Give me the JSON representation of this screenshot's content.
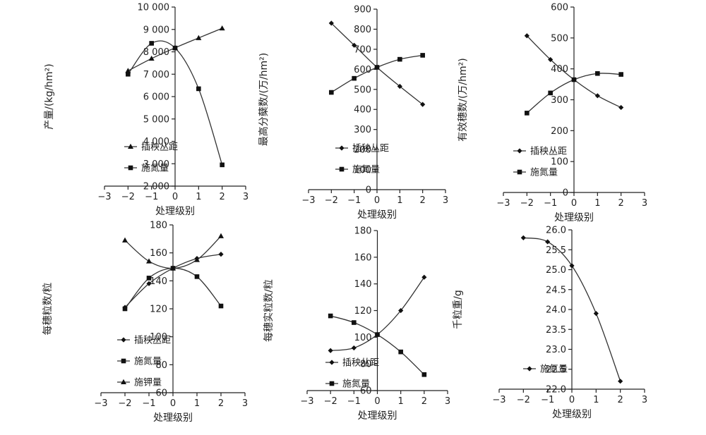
{
  "chart_data": [
    {
      "type": "line",
      "xlabel": "处理级别",
      "ylabel": "产量/(kg/hm²)",
      "xlim": [
        -3,
        3
      ],
      "ylim": [
        2000,
        10000
      ],
      "xticks": [
        -3,
        -2,
        -1,
        0,
        1,
        2,
        3
      ],
      "xtick_labels": [
        "−3",
        "−2",
        "−1",
        "0",
        "1",
        "2",
        "3"
      ],
      "yticks": [
        2000,
        3000,
        4000,
        5000,
        6000,
        7000,
        8000,
        9000,
        10000
      ],
      "ytick_labels": [
        "2 000",
        "3 000",
        "4 000",
        "5 000",
        "6 000",
        "7 000",
        "8 000",
        "9 000",
        "10 000"
      ],
      "legend_position": "lower-left",
      "series": [
        {
          "name": "插秧丛距",
          "marker": "triangle",
          "x": [
            -2,
            -1,
            0,
            1,
            2
          ],
          "y": [
            7150,
            7700,
            8180,
            8620,
            9050
          ]
        },
        {
          "name": "施氮量",
          "marker": "square",
          "x": [
            -2,
            -1,
            0,
            1,
            2
          ],
          "y": [
            7000,
            8380,
            8170,
            6350,
            2950
          ]
        }
      ]
    },
    {
      "type": "line",
      "xlabel": "处理级别",
      "ylabel": "最高分蘖数/(万/hm²)",
      "xlim": [
        -3,
        3
      ],
      "ylim": [
        0,
        900
      ],
      "xticks": [
        -3,
        -2,
        -1,
        0,
        1,
        2,
        3
      ],
      "xtick_labels": [
        "−3",
        "−2",
        "−1",
        "0",
        "1",
        "2",
        "3"
      ],
      "yticks": [
        0,
        100,
        200,
        300,
        400,
        500,
        600,
        700,
        800,
        900
      ],
      "ytick_labels": [
        "0",
        "100",
        "200",
        "300",
        "400",
        "500",
        "600",
        "700",
        "800",
        "900"
      ],
      "legend_position": "lower-left",
      "series": [
        {
          "name": "插秧丛距",
          "marker": "diamond",
          "x": [
            -2,
            -1,
            0,
            1,
            2
          ],
          "y": [
            830,
            720,
            610,
            515,
            425
          ]
        },
        {
          "name": "施氮量",
          "marker": "square",
          "x": [
            -2,
            -1,
            0,
            1,
            2
          ],
          "y": [
            485,
            555,
            610,
            650,
            670
          ]
        }
      ]
    },
    {
      "type": "line",
      "xlabel": "处理级别",
      "ylabel": "有效穗数/(万/hm²)",
      "xlim": [
        -3,
        3
      ],
      "ylim": [
        0,
        600
      ],
      "xticks": [
        -3,
        -2,
        -1,
        0,
        1,
        2,
        3
      ],
      "xtick_labels": [
        "−3",
        "−2",
        "−1",
        "0",
        "1",
        "2",
        "3"
      ],
      "yticks": [
        0,
        100,
        200,
        300,
        400,
        500,
        600
      ],
      "ytick_labels": [
        "0",
        "100",
        "200",
        "300",
        "400",
        "500",
        "600"
      ],
      "legend_position": "lower-left",
      "series": [
        {
          "name": "插秧丛距",
          "marker": "diamond",
          "x": [
            -2,
            -1,
            0,
            1,
            2
          ],
          "y": [
            507,
            430,
            365,
            313,
            275
          ]
        },
        {
          "name": "施氮量",
          "marker": "square",
          "x": [
            -2,
            -1,
            0,
            1,
            2
          ],
          "y": [
            257,
            322,
            365,
            385,
            382
          ]
        }
      ]
    },
    {
      "type": "line",
      "xlabel": "处理级别",
      "ylabel": "每穗粒数/粒",
      "xlim": [
        -3,
        3
      ],
      "ylim": [
        60,
        180
      ],
      "xticks": [
        -3,
        -2,
        -1,
        0,
        1,
        2,
        3
      ],
      "xtick_labels": [
        "−3",
        "−2",
        "−1",
        "0",
        "1",
        "2",
        "3"
      ],
      "yticks": [
        60,
        80,
        100,
        120,
        140,
        160,
        180
      ],
      "ytick_labels": [
        "60",
        "80",
        "100",
        "120",
        "140",
        "160",
        "180"
      ],
      "legend_position": "lower-left",
      "series": [
        {
          "name": "插秧丛距",
          "marker": "diamond",
          "x": [
            -2,
            -1,
            0,
            1,
            2
          ],
          "y": [
            121,
            138,
            149,
            156,
            159
          ]
        },
        {
          "name": "施氮量",
          "marker": "square",
          "x": [
            -2,
            -1,
            0,
            1,
            2
          ],
          "y": [
            120,
            142,
            149,
            143,
            122
          ]
        },
        {
          "name": "施钾量",
          "marker": "triangle",
          "x": [
            -2,
            -1,
            0,
            1,
            2
          ],
          "y": [
            169,
            154,
            149,
            155,
            172
          ]
        }
      ]
    },
    {
      "type": "line",
      "xlabel": "处理级别",
      "ylabel": "每穗实粒数/粒",
      "xlim": [
        -3,
        3
      ],
      "ylim": [
        60,
        180
      ],
      "xticks": [
        -3,
        -2,
        -1,
        0,
        1,
        2,
        3
      ],
      "xtick_labels": [
        "−3",
        "−2",
        "−1",
        "0",
        "1",
        "2",
        "3"
      ],
      "yticks": [
        60,
        80,
        100,
        120,
        140,
        160,
        180
      ],
      "ytick_labels": [
        "60",
        "80",
        "100",
        "120",
        "140",
        "160",
        "180"
      ],
      "legend_position": "lower-left",
      "series": [
        {
          "name": "插秧丛距",
          "marker": "diamond",
          "x": [
            -2,
            -1,
            0,
            1,
            2
          ],
          "y": [
            90,
            92,
            102,
            120,
            145
          ]
        },
        {
          "name": "施氮量",
          "marker": "square",
          "x": [
            -2,
            -1,
            0,
            1,
            2
          ],
          "y": [
            116,
            111,
            102,
            89,
            72
          ]
        }
      ]
    },
    {
      "type": "line",
      "xlabel": "处理级别",
      "ylabel": "千粒重/g",
      "xlim": [
        -3,
        3
      ],
      "ylim": [
        22.0,
        26.0
      ],
      "xticks": [
        -3,
        -2,
        -1,
        0,
        1,
        2,
        3
      ],
      "xtick_labels": [
        "−3",
        "−2",
        "−1",
        "0",
        "1",
        "2",
        "3"
      ],
      "yticks": [
        22.0,
        22.5,
        23.0,
        23.5,
        24.0,
        24.5,
        25.0,
        25.5,
        26.0
      ],
      "ytick_labels": [
        "22.0",
        "22.5",
        "23.0",
        "23.5",
        "24.0",
        "24.5",
        "25.0",
        "25.5",
        "26.0"
      ],
      "legend_position": "lower-left",
      "series": [
        {
          "name": "施氮量",
          "marker": "diamond",
          "x": [
            -2,
            -1,
            0,
            1,
            2
          ],
          "y": [
            25.8,
            25.7,
            25.1,
            23.9,
            22.2
          ]
        }
      ]
    }
  ]
}
